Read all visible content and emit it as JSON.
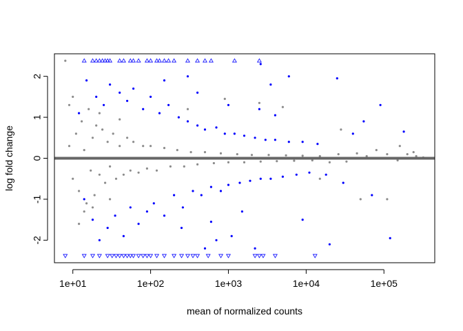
{
  "chart_data": {
    "type": "scatter",
    "title": "",
    "xlabel": "mean of normalized counts",
    "ylabel": "log fold change",
    "x_scale": "log10",
    "xlim": [
      5.8,
      450000
    ],
    "ylim": [
      -2.55,
      2.55
    ],
    "x_ticks": [
      10,
      100,
      1000,
      10000,
      100000
    ],
    "x_tick_labels": [
      "1e+01",
      "1e+02",
      "1e+03",
      "1e+04",
      "1e+05"
    ],
    "y_ticks": [
      -2,
      -1,
      0,
      1,
      2
    ],
    "y_tick_labels": [
      "-2",
      "-1",
      "0",
      "1",
      "2"
    ],
    "reference_line": 0,
    "colors": {
      "not_significant": "#8c8c8c",
      "significant": "#0000ff",
      "reference_line": "#666666"
    },
    "series": [
      {
        "key": "not_significant",
        "points": [
          [
            9,
            0.3
          ],
          [
            10,
            -0.5
          ],
          [
            11,
            0.6
          ],
          [
            12,
            -0.8
          ],
          [
            13,
            0.9
          ],
          [
            14,
            0.2
          ],
          [
            15,
            -1.1
          ],
          [
            16,
            1.2
          ],
          [
            17,
            -0.3
          ],
          [
            18,
            0.5
          ],
          [
            19,
            -0.9
          ],
          [
            20,
            0.8
          ],
          [
            22,
            -0.4
          ],
          [
            24,
            0.7
          ],
          [
            26,
            -0.6
          ],
          [
            28,
            0.4
          ],
          [
            30,
            -0.2
          ],
          [
            33,
            0.6
          ],
          [
            36,
            -0.5
          ],
          [
            40,
            0.3
          ],
          [
            45,
            -0.4
          ],
          [
            50,
            0.5
          ],
          [
            55,
            -0.3
          ],
          [
            60,
            0.4
          ],
          [
            70,
            -0.35
          ],
          [
            80,
            0.3
          ],
          [
            90,
            -0.25
          ],
          [
            100,
            0.3
          ],
          [
            120,
            -0.3
          ],
          [
            150,
            0.25
          ],
          [
            180,
            -0.2
          ],
          [
            220,
            0.2
          ],
          [
            270,
            -0.2
          ],
          [
            330,
            0.15
          ],
          [
            400,
            -0.15
          ],
          [
            500,
            0.15
          ],
          [
            650,
            -0.12
          ],
          [
            800,
            0.12
          ],
          [
            1000,
            -0.1
          ],
          [
            1300,
            0.1
          ],
          [
            1600,
            -0.1
          ],
          [
            2000,
            0.08
          ],
          [
            2600,
            -0.08
          ],
          [
            3300,
            0.08
          ],
          [
            4200,
            -0.07
          ],
          [
            5500,
            0.07
          ],
          [
            7000,
            -0.06
          ],
          [
            9000,
            0.06
          ],
          [
            12000,
            -0.05
          ],
          [
            15000,
            0.05
          ],
          [
            20000,
            -0.1
          ],
          [
            26000,
            0.1
          ],
          [
            33000,
            -0.08
          ],
          [
            45000,
            0.12
          ],
          [
            60000,
            0.05
          ],
          [
            80000,
            0.2
          ],
          [
            110000,
            0.1
          ],
          [
            150000,
            -0.05
          ],
          [
            200000,
            0.1
          ],
          [
            260000,
            0.05
          ],
          [
            320000,
            0.02
          ],
          [
            8,
            2.38
          ],
          [
            9,
            1.3
          ],
          [
            10,
            1.5
          ],
          [
            12,
            -1.6
          ],
          [
            14,
            -1.3
          ],
          [
            18,
            -1.2
          ],
          [
            22,
            1.1
          ],
          [
            30,
            -1.0
          ],
          [
            40,
            0.95
          ],
          [
            300,
            1.2
          ],
          [
            900,
            1.45
          ],
          [
            2500,
            1.35
          ],
          [
            5000,
            1.25
          ],
          [
            15000,
            -0.5
          ],
          [
            28000,
            0.7
          ],
          [
            50000,
            -1.0
          ],
          [
            110000,
            -1.0
          ],
          [
            160000,
            0.3
          ],
          [
            240000,
            0.15
          ]
        ],
        "name": ""
      },
      {
        "key": "significant",
        "points": [
          [
            15,
            1.9
          ],
          [
            18,
            -1.5
          ],
          [
            20,
            1.5
          ],
          [
            22,
            -2.0
          ],
          [
            25,
            1.3
          ],
          [
            28,
            -1.7
          ],
          [
            30,
            1.8
          ],
          [
            35,
            -1.4
          ],
          [
            40,
            1.6
          ],
          [
            45,
            -1.9
          ],
          [
            50,
            1.4
          ],
          [
            55,
            -1.2
          ],
          [
            60,
            1.7
          ],
          [
            70,
            -1.6
          ],
          [
            80,
            1.2
          ],
          [
            90,
            -1.3
          ],
          [
            100,
            1.5
          ],
          [
            110,
            -1.1
          ],
          [
            130,
            1.1
          ],
          [
            150,
            -1.4
          ],
          [
            170,
            1.3
          ],
          [
            200,
            -0.9
          ],
          [
            230,
            1.0
          ],
          [
            260,
            -1.2
          ],
          [
            300,
            0.9
          ],
          [
            350,
            -0.8
          ],
          [
            400,
            0.8
          ],
          [
            450,
            -0.9
          ],
          [
            500,
            0.7
          ],
          [
            600,
            -0.7
          ],
          [
            700,
            0.75
          ],
          [
            800,
            -0.8
          ],
          [
            900,
            0.6
          ],
          [
            1000,
            -0.65
          ],
          [
            1200,
            0.6
          ],
          [
            1400,
            -0.6
          ],
          [
            1600,
            0.55
          ],
          [
            1900,
            -0.55
          ],
          [
            2200,
            0.5
          ],
          [
            2600,
            -0.5
          ],
          [
            3000,
            0.45
          ],
          [
            3500,
            -0.5
          ],
          [
            4000,
            0.45
          ],
          [
            5000,
            -0.45
          ],
          [
            6000,
            0.4
          ],
          [
            7500,
            -0.4
          ],
          [
            9000,
            0.4
          ],
          [
            11000,
            -0.35
          ],
          [
            14000,
            0.35
          ],
          [
            18000,
            -0.4
          ],
          [
            25000,
            1.95
          ],
          [
            30000,
            -0.6
          ],
          [
            40000,
            0.6
          ],
          [
            55000,
            0.9
          ],
          [
            70000,
            -0.9
          ],
          [
            90000,
            1.3
          ],
          [
            120000,
            -1.95
          ],
          [
            180000,
            0.65
          ],
          [
            12,
            1.1
          ],
          [
            14,
            -1.0
          ],
          [
            150,
            1.9
          ],
          [
            250,
            -1.7
          ],
          [
            400,
            1.6
          ],
          [
            600,
            -1.55
          ],
          [
            1000,
            1.3
          ],
          [
            1500,
            -1.3
          ],
          [
            2500,
            1.2
          ],
          [
            4000,
            1.05
          ],
          [
            6000,
            2.0
          ],
          [
            3500,
            1.8
          ],
          [
            700,
            -2.0
          ],
          [
            1100,
            -1.9
          ],
          [
            2200,
            -2.2
          ],
          [
            9000,
            -1.5
          ],
          [
            20000,
            -2.1
          ],
          [
            300,
            2.0
          ],
          [
            500,
            -2.2
          ],
          [
            2600,
            2.3
          ]
        ],
        "name": ""
      },
      {
        "key": "clipped_up",
        "marker": "triangle-up",
        "y": 2.38,
        "x": [
          14,
          18,
          20,
          22,
          24,
          26,
          28,
          30,
          40,
          45,
          55,
          60,
          70,
          90,
          100,
          120,
          130,
          150,
          170,
          200,
          300,
          400,
          500,
          600,
          1200,
          2500
        ],
        "name": ""
      },
      {
        "key": "clipped_down",
        "marker": "triangle-down",
        "y": -2.38,
        "x": [
          8,
          14,
          18,
          22,
          28,
          32,
          36,
          40,
          45,
          50,
          55,
          60,
          70,
          80,
          90,
          100,
          120,
          150,
          200,
          250,
          300,
          350,
          400,
          550,
          800,
          1000,
          2200,
          2500,
          2800,
          4000,
          13000
        ],
        "name": ""
      }
    ],
    "grid": false,
    "legend": "none"
  }
}
